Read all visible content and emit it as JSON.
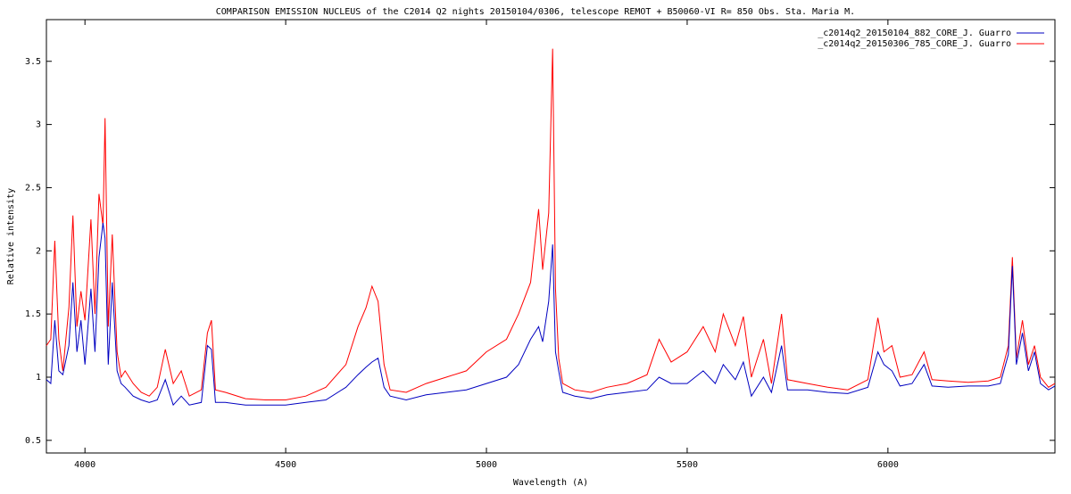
{
  "chart_data": {
    "type": "line",
    "title": "COMPARISON EMISSION NUCLEUS of the  C2014 Q2 nights 20150104/0306, telescope REMOT + B50060-VI  R= 850   Obs. Sta. Maria  M.",
    "x_label": "Wavelength (A)",
    "y_label": "Relative intensity",
    "xlim": [
      3904,
      6416
    ],
    "ylim": [
      0.4,
      3.83
    ],
    "xticks": [
      4000,
      4500,
      5000,
      5500,
      6000
    ],
    "yticks": [
      0.5,
      1,
      1.5,
      2,
      2.5,
      3,
      3.5
    ],
    "legend": "top-right",
    "x": [
      3904,
      3915,
      3925,
      3935,
      3945,
      3960,
      3970,
      3980,
      3990,
      4000,
      4015,
      4025,
      4035,
      4045,
      4050,
      4058,
      4068,
      4080,
      4090,
      4100,
      4120,
      4140,
      4160,
      4180,
      4200,
      4220,
      4240,
      4260,
      4290,
      4305,
      4315,
      4325,
      4350,
      4400,
      4450,
      4500,
      4550,
      4600,
      4650,
      4680,
      4700,
      4715,
      4730,
      4745,
      4760,
      4800,
      4850,
      4900,
      4950,
      5000,
      5050,
      5080,
      5110,
      5130,
      5140,
      5155,
      5165,
      5172,
      5180,
      5190,
      5220,
      5260,
      5300,
      5350,
      5400,
      5430,
      5460,
      5500,
      5540,
      5570,
      5590,
      5620,
      5640,
      5660,
      5690,
      5710,
      5735,
      5750,
      5800,
      5850,
      5900,
      5950,
      5975,
      5990,
      6010,
      6030,
      6060,
      6090,
      6110,
      6150,
      6200,
      6250,
      6280,
      6300,
      6310,
      6320,
      6335,
      6350,
      6365,
      6380,
      6400,
      6416
    ],
    "series": [
      {
        "name": "_c2014q2_20150104_882_CORE_J. Guarro",
        "color": "#0000c0",
        "values": [
          0.98,
          0.95,
          1.45,
          1.05,
          1.02,
          1.25,
          1.75,
          1.2,
          1.45,
          1.1,
          1.7,
          1.2,
          1.95,
          2.22,
          2.1,
          1.1,
          1.75,
          1.05,
          0.95,
          0.92,
          0.85,
          0.82,
          0.8,
          0.82,
          0.98,
          0.78,
          0.85,
          0.78,
          0.8,
          1.25,
          1.22,
          0.8,
          0.8,
          0.78,
          0.78,
          0.78,
          0.8,
          0.82,
          0.92,
          1.02,
          1.08,
          1.12,
          1.15,
          0.92,
          0.85,
          0.82,
          0.86,
          0.88,
          0.9,
          0.95,
          1.0,
          1.1,
          1.3,
          1.4,
          1.28,
          1.6,
          2.05,
          1.2,
          1.05,
          0.88,
          0.85,
          0.83,
          0.86,
          0.88,
          0.9,
          1.0,
          0.95,
          0.95,
          1.05,
          0.95,
          1.1,
          0.98,
          1.12,
          0.85,
          1.0,
          0.88,
          1.25,
          0.9,
          0.9,
          0.88,
          0.87,
          0.92,
          1.2,
          1.1,
          1.05,
          0.93,
          0.95,
          1.1,
          0.93,
          0.92,
          0.93,
          0.93,
          0.95,
          1.18,
          1.88,
          1.1,
          1.35,
          1.05,
          1.2,
          0.95,
          0.9,
          0.93
        ]
      },
      {
        "name": "_c2014q2_20150306_785_CORE_J. Guarro",
        "color": "#ff0000",
        "values": [
          1.25,
          1.3,
          2.08,
          1.3,
          1.05,
          1.55,
          2.28,
          1.4,
          1.68,
          1.45,
          2.25,
          1.5,
          2.45,
          2.2,
          3.05,
          1.4,
          2.13,
          1.2,
          1.0,
          1.05,
          0.95,
          0.88,
          0.85,
          0.92,
          1.22,
          0.95,
          1.05,
          0.85,
          0.9,
          1.35,
          1.45,
          0.9,
          0.88,
          0.83,
          0.82,
          0.82,
          0.85,
          0.92,
          1.1,
          1.4,
          1.55,
          1.72,
          1.6,
          1.1,
          0.9,
          0.88,
          0.95,
          1.0,
          1.05,
          1.2,
          1.3,
          1.5,
          1.75,
          2.33,
          1.85,
          2.3,
          3.6,
          1.7,
          1.15,
          0.95,
          0.9,
          0.88,
          0.92,
          0.95,
          1.02,
          1.3,
          1.12,
          1.2,
          1.4,
          1.2,
          1.5,
          1.25,
          1.48,
          1.0,
          1.3,
          0.95,
          1.5,
          0.98,
          0.95,
          0.92,
          0.9,
          0.98,
          1.47,
          1.2,
          1.25,
          1.0,
          1.02,
          1.2,
          0.98,
          0.97,
          0.96,
          0.97,
          1.0,
          1.25,
          1.95,
          1.15,
          1.45,
          1.1,
          1.25,
          1.0,
          0.92,
          0.95
        ]
      }
    ]
  }
}
